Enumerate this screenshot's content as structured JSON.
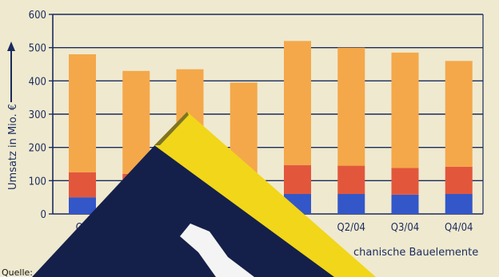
{
  "chart_data": {
    "type": "bar",
    "stacked": true,
    "categories": [
      "Q1",
      "",
      "",
      "",
      "",
      "Q2/04",
      "Q3/04",
      "Q4/04"
    ],
    "series": [
      {
        "color": "#3357c8",
        "values": [
          50,
          50,
          50,
          50,
          60,
          60,
          58,
          60
        ]
      },
      {
        "color": "#e2573c",
        "values": [
          75,
          70,
          72,
          70,
          87,
          85,
          80,
          82
        ]
      },
      {
        "color": "#f4a84a",
        "values": [
          355,
          310,
          313,
          275,
          373,
          355,
          347,
          318
        ]
      }
    ],
    "ylabel": "Umsatz in Mio. €",
    "ylim": [
      0,
      600
    ],
    "yticks": [
      0,
      100,
      200,
      300,
      400,
      500,
      600
    ],
    "grid": true,
    "legend_fragment": "chanische Bauelemente",
    "source_label": "Quelle:"
  },
  "colors": {
    "axis": "#1a2b5e",
    "background": "#efe9cf",
    "overlay_dark": "#14204a",
    "overlay_yellow": "#f2d619",
    "overlay_white": "#f4f4f4"
  }
}
